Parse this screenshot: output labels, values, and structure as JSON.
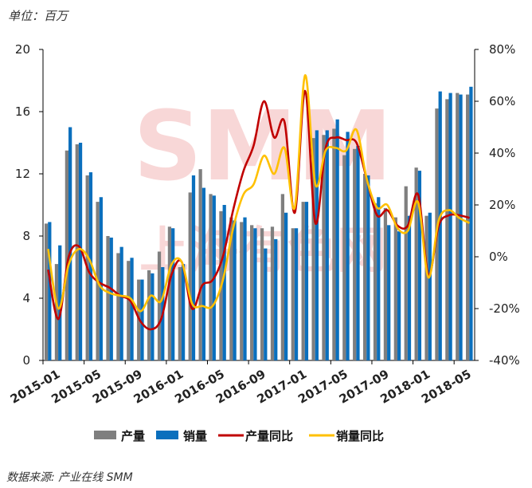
{
  "chart_data": {
    "type": "bar",
    "unit_label": "单位：百万",
    "source": "数据来源: 产业在线 SMM",
    "watermark": {
      "logo_text": "SMM",
      "logo_subtext": "上海有色网"
    },
    "x_tick_labels": [
      "2015-01",
      "2015-05",
      "2015-09",
      "2016-01",
      "2016-05",
      "2016-09",
      "2017-01",
      "2017-05",
      "2017-09",
      "2018-01",
      "2018-05"
    ],
    "y_left": {
      "min": 0,
      "max": 20,
      "ticks": [
        0,
        4,
        8,
        12,
        16,
        20
      ]
    },
    "y_right": {
      "min": -40,
      "max": 80,
      "ticks": [
        "-40%",
        "-20%",
        "0%",
        "20%",
        "40%",
        "60%",
        "80%"
      ]
    },
    "categories": [
      "2015-01",
      "2015-02",
      "2015-03",
      "2015-04",
      "2015-05",
      "2015-06",
      "2015-07",
      "2015-08",
      "2015-09",
      "2015-10",
      "2015-11",
      "2015-12",
      "2016-01",
      "2016-02",
      "2016-03",
      "2016-04",
      "2016-05",
      "2016-06",
      "2016-07",
      "2016-08",
      "2016-09",
      "2016-10",
      "2016-11",
      "2016-12",
      "2017-01",
      "2017-02",
      "2017-03",
      "2017-04",
      "2017-05",
      "2017-06",
      "2017-07",
      "2017-08",
      "2017-09",
      "2017-10",
      "2017-11",
      "2017-12",
      "2018-01",
      "2018-02",
      "2018-03",
      "2018-04",
      "2018-05",
      "2018-06"
    ],
    "series": [
      {
        "name": "产量",
        "kind": "bar",
        "axis": "left",
        "color": "#7f7f7f",
        "values": [
          8.8,
          6.2,
          13.5,
          13.9,
          11.9,
          10.2,
          8.0,
          6.9,
          6.4,
          5.2,
          5.8,
          7.0,
          8.6,
          6.0,
          10.8,
          12.3,
          10.7,
          9.6,
          9.2,
          8.9,
          8.7,
          8.5,
          8.6,
          10.7,
          8.5,
          10.2,
          14.3,
          14.5,
          14.9,
          13.2,
          13.6,
          12.0,
          10.1,
          9.8,
          9.2,
          11.2,
          12.4,
          9.3,
          16.2,
          16.8,
          17.2,
          17.1
        ]
      },
      {
        "name": "销量",
        "kind": "bar",
        "axis": "left",
        "color": "#0a6fbd",
        "values": [
          8.9,
          7.4,
          15.0,
          14.0,
          12.1,
          10.5,
          7.9,
          7.3,
          6.6,
          5.2,
          5.6,
          6.0,
          8.5,
          6.2,
          11.9,
          11.1,
          10.6,
          10.0,
          9.0,
          9.2,
          8.5,
          7.2,
          7.8,
          9.5,
          8.5,
          10.2,
          14.8,
          14.8,
          15.5,
          14.7,
          13.8,
          11.9,
          10.5,
          8.7,
          8.3,
          9.3,
          12.2,
          9.5,
          17.3,
          17.2,
          17.1,
          17.6
        ]
      },
      {
        "name": "产量同比",
        "kind": "line",
        "axis": "right",
        "color": "#c00000",
        "values": [
          -5.0,
          -24.0,
          0.0,
          4.0,
          -6.0,
          -10.0,
          -12.0,
          -15.0,
          -17.0,
          -25.0,
          -28.0,
          -24.0,
          -7.0,
          -2.0,
          -20.0,
          -11.0,
          -9.0,
          0.0,
          18.0,
          33.0,
          43.0,
          60.0,
          46.0,
          52.0,
          17.0,
          64.0,
          13.0,
          42.0,
          46.0,
          45.0,
          44.0,
          30.0,
          16.0,
          18.0,
          12.0,
          12.0,
          24.0,
          -7.0,
          12.0,
          16.0,
          16.0,
          15.0
        ]
      },
      {
        "name": "销量同比",
        "kind": "line",
        "axis": "right",
        "color": "#ffc000",
        "values": [
          3.0,
          -20.0,
          -3.0,
          3.0,
          -1.0,
          -11.0,
          -14.0,
          -15.0,
          -16.0,
          -21.0,
          -15.0,
          -17.0,
          -3.0,
          -2.0,
          -18.0,
          -19.0,
          -19.0,
          -9.0,
          11.0,
          24.0,
          28.0,
          39.0,
          32.0,
          42.0,
          19.0,
          70.0,
          28.0,
          41.0,
          42.0,
          41.0,
          49.0,
          30.0,
          19.0,
          20.0,
          11.0,
          10.0,
          21.0,
          -8.0,
          14.0,
          18.0,
          15.0,
          13.0
        ]
      }
    ],
    "legend": {
      "position": "bottom",
      "entries": [
        "产量",
        "销量",
        "产量同比",
        "销量同比"
      ]
    },
    "grid": false
  }
}
